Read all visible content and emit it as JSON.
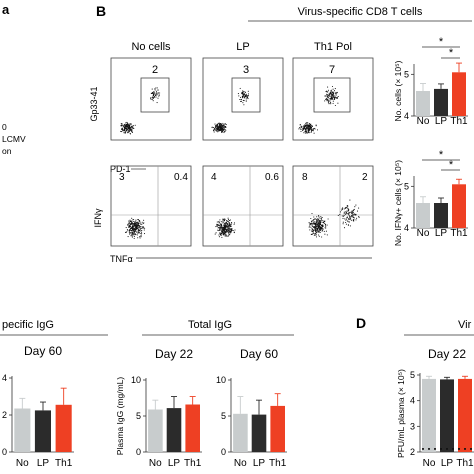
{
  "panels": {
    "B": "B",
    "D": "D",
    "b_title": "Virus-specific CD8 T cells",
    "d_title_fragment": "Vir"
  },
  "left_fragments": {
    "a_lines": [
      "0",
      "LCMV",
      "on"
    ],
    "c_title_fragment": "pecific IgG"
  },
  "flow": {
    "row1_ylabel": "Gp33-41",
    "row1_xlabel": "PD-1",
    "row2_ylabel": "IFNγ",
    "row2_xlabel": "TNFα",
    "conditions": [
      "No cells",
      "LP",
      "Th1 Pol"
    ],
    "row1_percent": [
      "2",
      "3",
      "7"
    ],
    "row2_left_percent": [
      "3",
      "4",
      "8"
    ],
    "row2_right_percent": [
      "0.4",
      "0.6",
      "2"
    ]
  },
  "significance": "*",
  "colors": {
    "no": "#c8cccd",
    "lp": "#2b2b2b",
    "th1": "#ee4023"
  },
  "chart_data": [
    {
      "id": "b-top",
      "type": "bar",
      "ylabel": "No. cells (× 10⁵)",
      "categories": [
        "No",
        "LP",
        "Th1"
      ],
      "values": [
        4.6,
        4.65,
        5.05
      ],
      "errors": [
        0.18,
        0.12,
        0.22
      ],
      "ylim": [
        4,
        5.2
      ],
      "ticks": [
        4,
        5
      ]
    },
    {
      "id": "b-bottom",
      "type": "bar",
      "ylabel": "No. IFNγ+ cells (× 10⁵)",
      "categories": [
        "No",
        "LP",
        "Th1"
      ],
      "values": [
        4.6,
        4.6,
        5.05
      ],
      "errors": [
        0.15,
        0.12,
        0.12
      ],
      "ylim": [
        4,
        5.2
      ],
      "ticks": [
        4,
        5
      ]
    },
    {
      "id": "c-left",
      "type": "bar",
      "title": "Day 60",
      "categories": [
        "No",
        "LP",
        "Th1"
      ],
      "values": [
        2.35,
        2.25,
        2.55
      ],
      "errors": [
        0.55,
        0.45,
        0.9
      ],
      "ylim": [
        0,
        4
      ],
      "ticks": [
        0,
        2,
        4
      ]
    },
    {
      "id": "c-total-22",
      "type": "bar",
      "group_title": "Total IgG",
      "title": "Day 22",
      "ylabel": "Plasma IgG (mg/mL)",
      "categories": [
        "No",
        "LP",
        "Th1"
      ],
      "values": [
        5.9,
        6.1,
        6.6
      ],
      "errors": [
        1.3,
        1.6,
        1.1
      ],
      "ylim": [
        0,
        10
      ],
      "ticks": [
        0,
        5,
        10
      ]
    },
    {
      "id": "c-total-60",
      "type": "bar",
      "title": "Day 60",
      "categories": [
        "No",
        "LP",
        "Th1"
      ],
      "values": [
        5.3,
        5.2,
        6.4
      ],
      "errors": [
        2.4,
        2.0,
        1.7
      ],
      "ylim": [
        0,
        10
      ],
      "ticks": [
        0,
        5,
        10
      ]
    },
    {
      "id": "d-day22",
      "type": "bar",
      "title": "Day 22",
      "ylabel": "PFU/mL plasma (× 10⁵)",
      "categories": [
        "No",
        "LP",
        "Th1"
      ],
      "values": [
        4.85,
        4.83,
        4.85
      ],
      "errors": [
        0.1,
        0.08,
        0.1
      ],
      "ylim": [
        2,
        5
      ],
      "ticks": [
        2,
        3,
        4,
        5
      ]
    }
  ]
}
